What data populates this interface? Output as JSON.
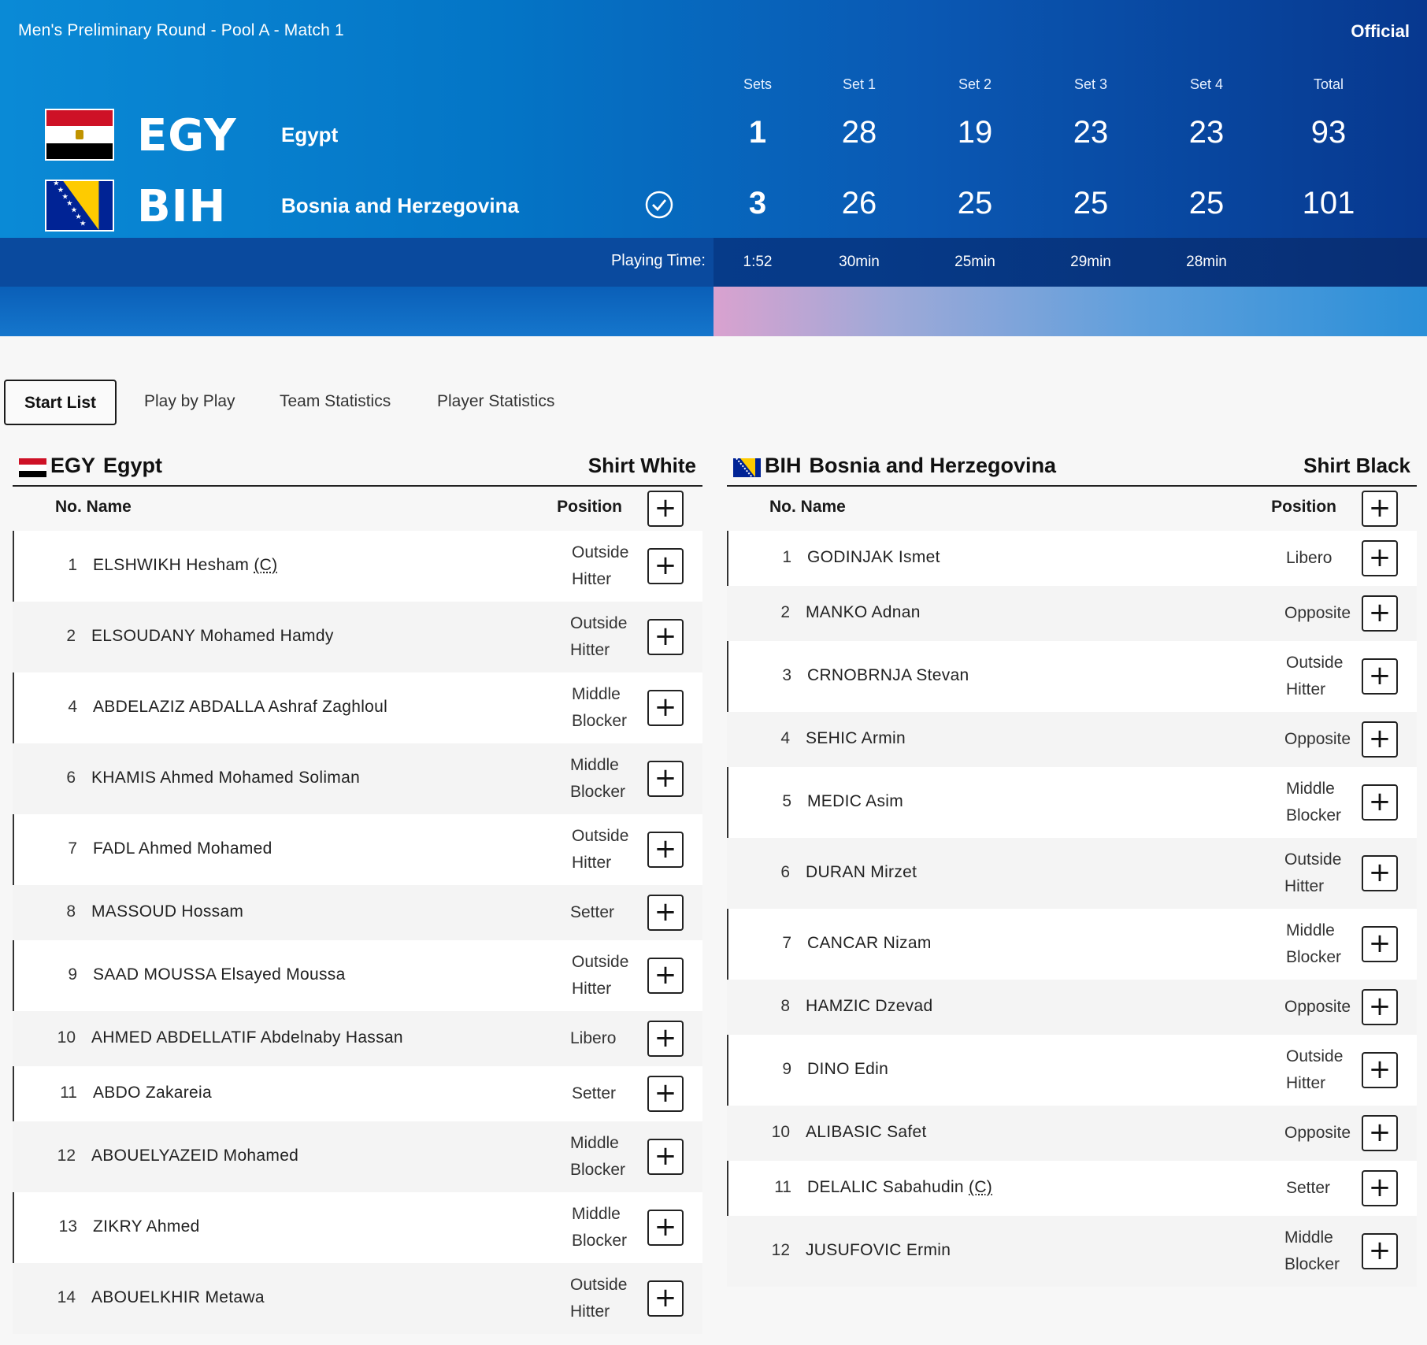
{
  "header": {
    "match_title": "Men's Preliminary Round - Pool A - Match 1",
    "status": "Official",
    "columns": [
      "Sets",
      "Set 1",
      "Set 2",
      "Set 3",
      "Set 4",
      "Total"
    ],
    "teams": [
      {
        "code": "EGY",
        "name": "Egypt",
        "sets": "1",
        "set_scores": [
          "28",
          "19",
          "23",
          "23"
        ],
        "total": "93",
        "winner": false
      },
      {
        "code": "BIH",
        "name": "Bosnia and Herzegovina",
        "sets": "3",
        "set_scores": [
          "26",
          "25",
          "25",
          "25"
        ],
        "total": "101",
        "winner": true
      }
    ],
    "playing_time_label": "Playing Time:",
    "playing_time_total": "1:52",
    "set_durations": [
      "30min",
      "25min",
      "29min",
      "28min"
    ]
  },
  "tabs": [
    "Start List",
    "Play by Play",
    "Team Statistics",
    "Player Statistics"
  ],
  "active_tab": "Start List",
  "table_labels": {
    "no_name": "No. Name",
    "position": "Position",
    "plus": "+"
  },
  "egy": {
    "code": "EGY",
    "name": "Egypt",
    "shirt": "Shirt White",
    "players": [
      {
        "no": "1",
        "name": "ELSHWIKH Hesham",
        "captain": "(C)",
        "pos1": "Outside",
        "pos2": "Hitter"
      },
      {
        "no": "2",
        "name": "ELSOUDANY Mohamed Hamdy",
        "pos1": "Outside",
        "pos2": "Hitter"
      },
      {
        "no": "4",
        "name": "ABDELAZIZ ABDALLA Ashraf Zaghloul",
        "pos1": "Middle",
        "pos2": "Blocker"
      },
      {
        "no": "6",
        "name": "KHAMIS Ahmed Mohamed Soliman",
        "pos1": "Middle",
        "pos2": "Blocker"
      },
      {
        "no": "7",
        "name": "FADL Ahmed Mohamed",
        "pos1": "Outside",
        "pos2": "Hitter"
      },
      {
        "no": "8",
        "name": "MASSOUD Hossam",
        "pos1": "Setter",
        "pos2": ""
      },
      {
        "no": "9",
        "name": "SAAD MOUSSA Elsayed Moussa",
        "pos1": "Outside",
        "pos2": "Hitter"
      },
      {
        "no": "10",
        "name": "AHMED ABDELLATIF Abdelnaby Hassan",
        "pos1": "Libero",
        "pos2": ""
      },
      {
        "no": "11",
        "name": "ABDO Zakareia",
        "pos1": "Setter",
        "pos2": ""
      },
      {
        "no": "12",
        "name": "ABOUELYAZEID Mohamed",
        "pos1": "Middle",
        "pos2": "Blocker"
      },
      {
        "no": "13",
        "name": "ZIKRY Ahmed",
        "pos1": "Middle",
        "pos2": "Blocker"
      },
      {
        "no": "14",
        "name": "ABOUELKHIR Metawa",
        "pos1": "Outside",
        "pos2": "Hitter"
      }
    ]
  },
  "bih": {
    "code": "BIH",
    "name": "Bosnia and Herzegovina",
    "shirt": "Shirt Black",
    "players": [
      {
        "no": "1",
        "name": "GODINJAK Ismet",
        "pos1": "Libero",
        "pos2": ""
      },
      {
        "no": "2",
        "name": "MANKO Adnan",
        "pos1": "Opposite",
        "pos2": ""
      },
      {
        "no": "3",
        "name": "CRNOBRNJA Stevan",
        "pos1": "Outside",
        "pos2": "Hitter"
      },
      {
        "no": "4",
        "name": "SEHIC Armin",
        "pos1": "Opposite",
        "pos2": ""
      },
      {
        "no": "5",
        "name": "MEDIC Asim",
        "pos1": "Middle",
        "pos2": "Blocker"
      },
      {
        "no": "6",
        "name": "DURAN Mirzet",
        "pos1": "Outside",
        "pos2": "Hitter"
      },
      {
        "no": "7",
        "name": "CANCAR Nizam",
        "pos1": "Middle",
        "pos2": "Blocker"
      },
      {
        "no": "8",
        "name": "HAMZIC Dzevad",
        "pos1": "Opposite",
        "pos2": ""
      },
      {
        "no": "9",
        "name": "DINO Edin",
        "pos1": "Outside",
        "pos2": "Hitter"
      },
      {
        "no": "10",
        "name": "ALIBASIC Safet",
        "pos1": "Opposite",
        "pos2": ""
      },
      {
        "no": "11",
        "name": "DELALIC Sabahudin",
        "captain": "(C)",
        "pos1": "Setter",
        "pos2": ""
      },
      {
        "no": "12",
        "name": "JUSUFOVIC Ermin",
        "pos1": "Middle",
        "pos2": "Blocker"
      }
    ]
  },
  "colors": {
    "banner_start": "#0a8ad6",
    "banner_end": "#07388f",
    "accent_pink": "#d9a2cf",
    "text_dark": "#1a1a1a"
  }
}
